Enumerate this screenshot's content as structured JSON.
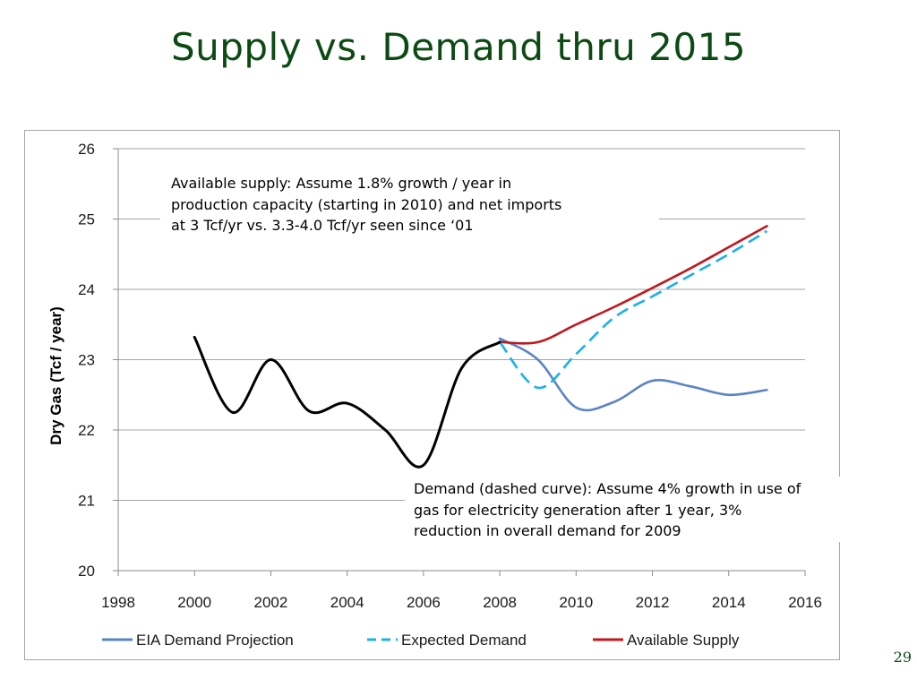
{
  "slide": {
    "title": "Supply vs. Demand thru 2015",
    "page_number": "29"
  },
  "annotations": {
    "supply_note": [
      "Available supply: Assume 1.8% growth / year in",
      "production capacity (starting in 2010) and net imports",
      "at 3 Tcf/yr vs. 3.3-4.0 Tcf/yr seen since ‘01"
    ],
    "demand_note": [
      "Demand (dashed curve): Assume 4% growth in use of",
      "gas for electricity generation after 1 year, 3%",
      "reduction in overall demand for 2009"
    ]
  },
  "chart_data": {
    "type": "line",
    "title": "",
    "xlabel": "",
    "ylabel": "Dry Gas (Tcf / year)",
    "xlim": [
      1998,
      2016
    ],
    "ylim": [
      20,
      26
    ],
    "xticks": [
      1998,
      2000,
      2002,
      2004,
      2006,
      2008,
      2010,
      2012,
      2014,
      2016
    ],
    "yticks": [
      20,
      21,
      22,
      23,
      24,
      25,
      26
    ],
    "grid": "horizontal",
    "legend_position": "bottom",
    "series": [
      {
        "name": "",
        "style": "solid",
        "color": "#000000",
        "x": [
          2000,
          2001,
          2002,
          2003,
          2004,
          2005,
          2006,
          2007,
          2008
        ],
        "y": [
          23.32,
          22.25,
          23.0,
          22.27,
          22.38,
          22.0,
          21.5,
          22.88,
          23.25
        ]
      },
      {
        "name": "EIA Demand Projection",
        "style": "solid",
        "color": "#5b84c4",
        "x": [
          2008,
          2009,
          2010,
          2011,
          2012,
          2013,
          2014,
          2015
        ],
        "y": [
          23.3,
          23.0,
          22.32,
          22.4,
          22.7,
          22.62,
          22.5,
          22.57
        ]
      },
      {
        "name": "Expected Demand",
        "style": "dashed",
        "color": "#1ab0e8",
        "x": [
          2008,
          2009,
          2010,
          2011,
          2012,
          2013,
          2014,
          2015
        ],
        "y": [
          23.25,
          22.6,
          23.08,
          23.6,
          23.9,
          24.2,
          24.5,
          24.83
        ]
      },
      {
        "name": "Available Supply",
        "style": "solid",
        "color": "#c0181d",
        "x": [
          2008,
          2009,
          2010,
          2011,
          2012,
          2013,
          2014,
          2015
        ],
        "y": [
          23.25,
          23.25,
          23.5,
          23.75,
          24.02,
          24.3,
          24.6,
          24.9
        ]
      }
    ]
  }
}
